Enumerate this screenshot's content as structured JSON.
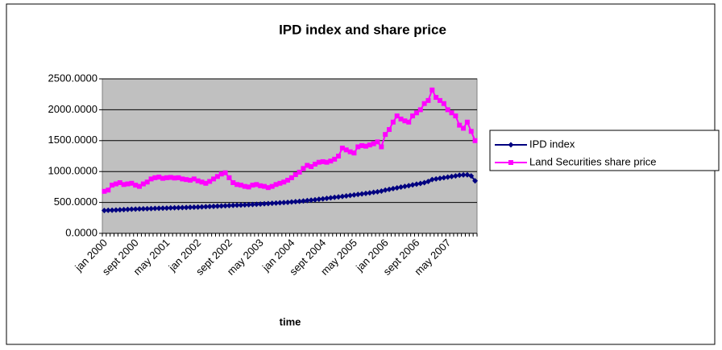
{
  "chart_data": {
    "type": "line",
    "title": "IPD index and share price",
    "x_label": "time",
    "categories": [
      "jan 2000",
      null,
      null,
      null,
      null,
      null,
      null,
      null,
      "sept 2000",
      null,
      null,
      null,
      null,
      null,
      null,
      null,
      "may 2001",
      null,
      null,
      null,
      null,
      null,
      null,
      null,
      "jan 2002",
      null,
      null,
      null,
      null,
      null,
      null,
      null,
      "sept 2002",
      null,
      null,
      null,
      null,
      null,
      null,
      null,
      "may 2003",
      null,
      null,
      null,
      null,
      null,
      null,
      null,
      "jan 2004",
      null,
      null,
      null,
      null,
      null,
      null,
      null,
      "sept 2004",
      null,
      null,
      null,
      null,
      null,
      null,
      null,
      "may 2005",
      null,
      null,
      null,
      null,
      null,
      null,
      null,
      "jan 2006",
      null,
      null,
      null,
      null,
      null,
      null,
      null,
      "sept 2006",
      null,
      null,
      null,
      null,
      null,
      null,
      null,
      "may 2007",
      null,
      null,
      null,
      null,
      null,
      null,
      null
    ],
    "series": [
      {
        "name": "IPD index",
        "color": "#000080",
        "marker": "diamond",
        "values": [
          370,
          372,
          375,
          378,
          381,
          384,
          387,
          390,
          393,
          395,
          397,
          399,
          401,
          403,
          405,
          407,
          409,
          411,
          413,
          415,
          417,
          419,
          421,
          423,
          425,
          428,
          431,
          434,
          437,
          440,
          443,
          446,
          449,
          452,
          455,
          458,
          461,
          464,
          467,
          470,
          474,
          478,
          482,
          486,
          490,
          494,
          498,
          502,
          507,
          512,
          518,
          524,
          530,
          537,
          544,
          551,
          558,
          566,
          574,
          582,
          590,
          598,
          606,
          614,
          622,
          630,
          638,
          646,
          655,
          664,
          673,
          683,
          700,
          712,
          724,
          736,
          748,
          760,
          772,
          784,
          796,
          808,
          820,
          840,
          870,
          880,
          890,
          900,
          910,
          920,
          930,
          940,
          945,
          948,
          930,
          850
        ]
      },
      {
        "name": "Land Securities share price",
        "color": "#ff00ff",
        "marker": "square",
        "values": [
          680,
          700,
          780,
          800,
          820,
          790,
          800,
          810,
          780,
          760,
          800,
          830,
          880,
          900,
          910,
          890,
          900,
          905,
          895,
          900,
          880,
          870,
          860,
          880,
          850,
          830,
          810,
          840,
          880,
          920,
          960,
          980,
          900,
          820,
          790,
          780,
          760,
          750,
          780,
          790,
          770,
          760,
          740,
          760,
          790,
          810,
          830,
          860,
          900,
          950,
          990,
          1050,
          1100,
          1080,
          1120,
          1150,
          1160,
          1150,
          1170,
          1200,
          1250,
          1380,
          1350,
          1320,
          1300,
          1400,
          1420,
          1410,
          1430,
          1450,
          1480,
          1400,
          1600,
          1680,
          1800,
          1900,
          1850,
          1820,
          1800,
          1900,
          1950,
          2000,
          2100,
          2150,
          2320,
          2200,
          2150,
          2100,
          2000,
          1950,
          1900,
          1750,
          1700,
          1800,
          1650,
          1500
        ]
      }
    ],
    "ylim": [
      0,
      2500
    ],
    "yticks": [
      {
        "value": 0,
        "label": "0.0000"
      },
      {
        "value": 500,
        "label": "500.0000"
      },
      {
        "value": 1000,
        "label": "1000.0000"
      },
      {
        "value": 1500,
        "label": "1500.0000"
      },
      {
        "value": 2000,
        "label": "2000.0000"
      },
      {
        "value": 2500,
        "label": "2500.0000"
      }
    ],
    "grid": true,
    "legend": "right"
  }
}
